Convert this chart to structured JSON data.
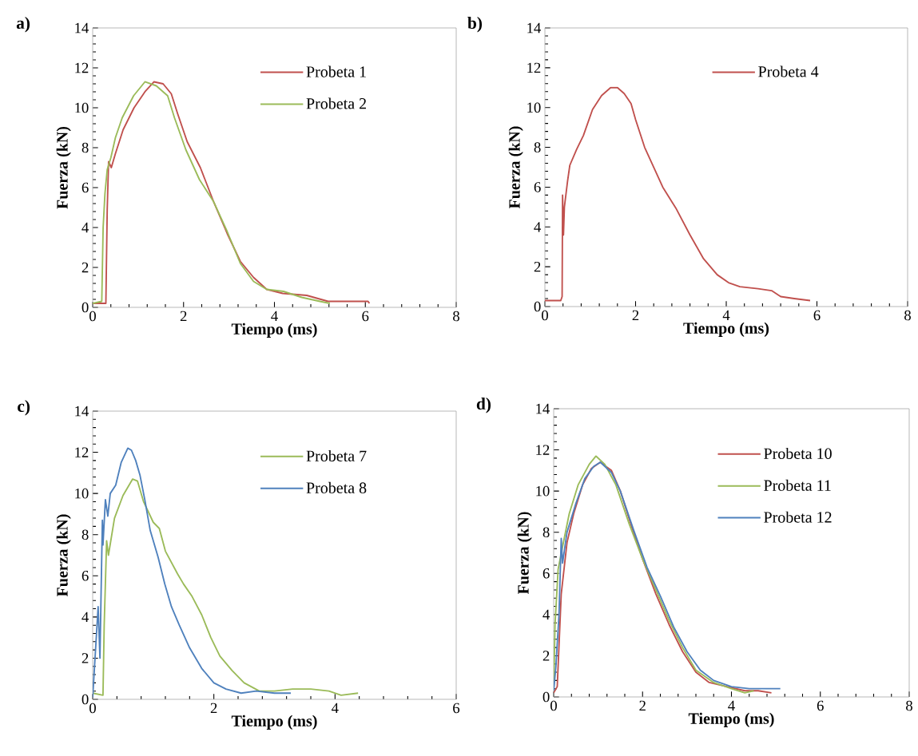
{
  "chart_data": [
    {
      "type": "line",
      "title": "a)",
      "xlabel": "Tiempo (ms)",
      "ylabel": "Fuerza (kN)",
      "xlim": [
        0,
        8
      ],
      "ylim": [
        0,
        14
      ],
      "xticks": [
        0,
        2,
        4,
        6,
        8
      ],
      "yticks": [
        0,
        2,
        4,
        6,
        8,
        10,
        12,
        14
      ],
      "legend": "top right",
      "series": [
        {
          "name": "Probeta 1",
          "color": "#c0504d",
          "x": [
            0,
            0.29,
            0.32,
            0.35,
            0.41,
            0.5,
            0.67,
            0.91,
            1.15,
            1.35,
            1.55,
            1.73,
            1.87,
            2.08,
            2.37,
            2.66,
            2.96,
            3.25,
            3.54,
            3.83,
            4.18,
            4.71,
            5.18,
            5.59,
            6.06,
            6.09
          ],
          "values": [
            0.2,
            0.2,
            4.9,
            7.3,
            7.0,
            7.7,
            8.9,
            10.0,
            10.8,
            11.3,
            11.2,
            10.7,
            9.7,
            8.3,
            7.0,
            5.3,
            3.7,
            2.3,
            1.5,
            0.9,
            0.7,
            0.6,
            0.3,
            0.3,
            0.3,
            0.2
          ]
        },
        {
          "name": "Probeta 2",
          "color": "#9bbb59",
          "x": [
            0,
            0.2,
            0.23,
            0.27,
            0.32,
            0.4,
            0.5,
            0.65,
            0.9,
            1.15,
            1.4,
            1.65,
            1.8,
            2.05,
            2.35,
            2.66,
            2.96,
            3.25,
            3.54,
            3.83,
            4.2,
            4.6,
            5.0,
            5.22
          ],
          "values": [
            0.2,
            0.3,
            4.0,
            5.7,
            6.9,
            7.5,
            8.5,
            9.5,
            10.6,
            11.3,
            11.1,
            10.6,
            9.5,
            7.9,
            6.4,
            5.3,
            3.8,
            2.2,
            1.3,
            0.9,
            0.8,
            0.5,
            0.3,
            0.2
          ]
        }
      ]
    },
    {
      "type": "line",
      "title": "b)",
      "xlabel": "Tiempo (ms)",
      "ylabel": "Fuerza (kN)",
      "xlim": [
        0,
        8
      ],
      "ylim": [
        0,
        14
      ],
      "xticks": [
        0,
        2,
        4,
        6,
        8
      ],
      "yticks": [
        0,
        2,
        4,
        6,
        8,
        10,
        12,
        14
      ],
      "legend": "top right",
      "series": [
        {
          "name": "Probeta 4",
          "color": "#c0504d",
          "x": [
            0,
            0.35,
            0.38,
            0.39,
            0.41,
            0.43,
            0.5,
            0.55,
            0.7,
            0.85,
            1.05,
            1.25,
            1.45,
            1.6,
            1.75,
            1.9,
            2.0,
            2.2,
            2.4,
            2.6,
            2.9,
            3.2,
            3.5,
            3.8,
            4.05,
            4.3,
            4.7,
            5.0,
            5.2,
            5.5,
            5.85
          ],
          "values": [
            0.3,
            0.3,
            0.5,
            5.6,
            3.6,
            5.0,
            6.3,
            7.1,
            7.9,
            8.6,
            9.9,
            10.6,
            11.0,
            11.0,
            10.7,
            10.2,
            9.4,
            8.0,
            7.0,
            6.0,
            4.9,
            3.6,
            2.4,
            1.6,
            1.2,
            1.0,
            0.9,
            0.8,
            0.5,
            0.4,
            0.3
          ]
        }
      ]
    },
    {
      "type": "line",
      "title": "c)",
      "xlabel": "Tiempo (ms)",
      "ylabel": "Fuerza (kN)",
      "xlim": [
        0,
        6
      ],
      "ylim": [
        0,
        14
      ],
      "xticks": [
        0,
        2,
        4,
        6
      ],
      "yticks": [
        0,
        2,
        4,
        6,
        8,
        10,
        12,
        14
      ],
      "legend": "top right",
      "series": [
        {
          "name": "Probeta 7",
          "color": "#9bbb59",
          "x": [
            0,
            0.17,
            0.19,
            0.23,
            0.26,
            0.36,
            0.5,
            0.66,
            0.74,
            0.84,
            1.0,
            1.1,
            1.2,
            1.4,
            1.5,
            1.64,
            1.8,
            1.95,
            2.1,
            2.3,
            2.5,
            2.75,
            3.0,
            3.3,
            3.6,
            3.9,
            4.1,
            4.38
          ],
          "values": [
            0.3,
            0.2,
            3.6,
            7.7,
            7.0,
            8.8,
            9.9,
            10.7,
            10.6,
            9.6,
            8.6,
            8.3,
            7.2,
            6.1,
            5.6,
            5.0,
            4.1,
            3.0,
            2.1,
            1.4,
            0.8,
            0.4,
            0.4,
            0.5,
            0.5,
            0.4,
            0.2,
            0.3
          ]
        },
        {
          "name": "Probeta 8",
          "color": "#4f81bd",
          "x": [
            0,
            0.09,
            0.12,
            0.16,
            0.17,
            0.21,
            0.25,
            0.29,
            0.38,
            0.47,
            0.58,
            0.64,
            0.71,
            0.78,
            0.86,
            0.95,
            1.08,
            1.19,
            1.3,
            1.43,
            1.6,
            1.8,
            2.0,
            2.2,
            2.45,
            2.7,
            3.0,
            3.27
          ],
          "values": [
            0.1,
            4.5,
            2.0,
            8.7,
            7.5,
            9.7,
            8.9,
            10.0,
            10.4,
            11.5,
            12.2,
            12.1,
            11.6,
            10.9,
            9.7,
            8.2,
            6.9,
            5.6,
            4.5,
            3.6,
            2.5,
            1.5,
            0.8,
            0.5,
            0.3,
            0.4,
            0.3,
            0.3
          ]
        }
      ]
    },
    {
      "type": "line",
      "title": "d)",
      "xlabel": "Tiempo (ms)",
      "ylabel": "Fuerza (kN)",
      "xlim": [
        0,
        8
      ],
      "ylim": [
        0,
        14
      ],
      "xticks": [
        0,
        2,
        4,
        6,
        8
      ],
      "yticks": [
        0,
        2,
        4,
        6,
        8,
        10,
        12,
        14
      ],
      "legend": "top right",
      "series": [
        {
          "name": "Probeta 10",
          "color": "#c0504d",
          "x": [
            0,
            0.08,
            0.17,
            0.3,
            0.45,
            0.65,
            0.85,
            1.05,
            1.3,
            1.5,
            1.75,
            2.0,
            2.3,
            2.6,
            2.9,
            3.2,
            3.5,
            3.9,
            4.3,
            4.6,
            4.9
          ],
          "values": [
            0.2,
            0.5,
            5.0,
            7.5,
            8.9,
            10.3,
            11.1,
            11.4,
            11.0,
            10.0,
            8.3,
            6.7,
            5.0,
            3.5,
            2.2,
            1.2,
            0.7,
            0.5,
            0.3,
            0.3,
            0.2
          ]
        },
        {
          "name": "Probeta 11",
          "color": "#9bbb59",
          "x": [
            0,
            0.03,
            0.1,
            0.2,
            0.35,
            0.55,
            0.8,
            0.95,
            1.15,
            1.4,
            1.7,
            2.0,
            2.3,
            2.6,
            2.9,
            3.2,
            3.6,
            4.0,
            4.3,
            4.5
          ],
          "values": [
            0.3,
            3.5,
            6.2,
            7.3,
            8.9,
            10.3,
            11.3,
            11.7,
            11.3,
            10.3,
            8.4,
            6.7,
            5.2,
            3.7,
            2.4,
            1.3,
            0.7,
            0.4,
            0.2,
            0.3
          ]
        },
        {
          "name": "Probeta 12",
          "color": "#4f81bd",
          "x": [
            0,
            0.05,
            0.12,
            0.17,
            0.2,
            0.3,
            0.5,
            0.7,
            0.9,
            1.05,
            1.3,
            1.5,
            1.8,
            2.1,
            2.4,
            2.7,
            3.0,
            3.3,
            3.6,
            4.0,
            4.4,
            4.7,
            5.1
          ],
          "values": [
            0.3,
            1.5,
            4.0,
            7.7,
            6.5,
            8.0,
            9.4,
            10.6,
            11.2,
            11.4,
            10.9,
            10.0,
            8.1,
            6.3,
            4.9,
            3.4,
            2.2,
            1.3,
            0.8,
            0.5,
            0.4,
            0.4,
            0.4
          ]
        }
      ]
    }
  ]
}
